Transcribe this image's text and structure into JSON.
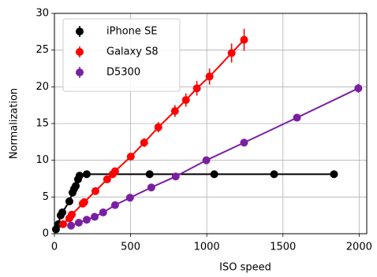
{
  "chart_data": {
    "type": "errorbar-line",
    "xlabel": "ISO speed",
    "ylabel": "Normalization",
    "xlim": [
      0,
      2050
    ],
    "ylim": [
      0,
      30
    ],
    "xticks": [
      0,
      500,
      1000,
      1500,
      2000
    ],
    "yticks": [
      0,
      5,
      10,
      15,
      20,
      25,
      30
    ],
    "grid": true,
    "legend": "upper left",
    "series": [
      {
        "name": "iPhone SE",
        "color": "#000000",
        "x": [
          10,
          26,
          41,
          52,
          98,
          119,
          129,
          140,
          155,
          165,
          212,
          625,
          1049,
          1442,
          1835
        ],
        "values": [
          0.6,
          1.3,
          2.5,
          2.9,
          4.4,
          5.6,
          6.1,
          6.5,
          7.4,
          7.9,
          8.1,
          8.1,
          8.1,
          8.1,
          8.1
        ],
        "errors": [
          0.2,
          0.2,
          0.3,
          0.3,
          0.3,
          0.3,
          0.3,
          0.3,
          0.3,
          0.3,
          0.3,
          0.3,
          0.3,
          0.3,
          0.3
        ]
      },
      {
        "name": "Galaxy S8",
        "color": "#ff0000",
        "x": [
          57,
          98,
          114,
          186,
          196,
          269,
          346,
          382,
          398,
          501,
          589,
          682,
          791,
          863,
          935,
          1018,
          1163,
          1245
        ],
        "values": [
          1.3,
          2.1,
          2.6,
          4.1,
          4.3,
          5.8,
          7.4,
          8.1,
          8.5,
          10.5,
          12.4,
          14.5,
          16.7,
          18.2,
          19.8,
          21.4,
          24.6,
          26.4
        ],
        "errors": [
          0.2,
          0.2,
          0.2,
          0.3,
          0.3,
          0.3,
          0.4,
          0.4,
          0.4,
          0.5,
          0.6,
          0.7,
          0.8,
          0.9,
          1.0,
          1.1,
          1.3,
          1.5
        ]
      },
      {
        "name": "D5300",
        "color": "#7b1fa2",
        "x": [
          109,
          160,
          212,
          264,
          320,
          398,
          496,
          636,
          796,
          997,
          1245,
          1592,
          1995
        ],
        "values": [
          1.1,
          1.5,
          1.9,
          2.3,
          2.9,
          3.9,
          4.9,
          6.3,
          7.8,
          10.0,
          12.4,
          15.8,
          19.8
        ],
        "errors": [
          0.1,
          0.1,
          0.1,
          0.1,
          0.1,
          0.2,
          0.2,
          0.2,
          0.3,
          0.3,
          0.4,
          0.5,
          0.6
        ]
      }
    ]
  }
}
